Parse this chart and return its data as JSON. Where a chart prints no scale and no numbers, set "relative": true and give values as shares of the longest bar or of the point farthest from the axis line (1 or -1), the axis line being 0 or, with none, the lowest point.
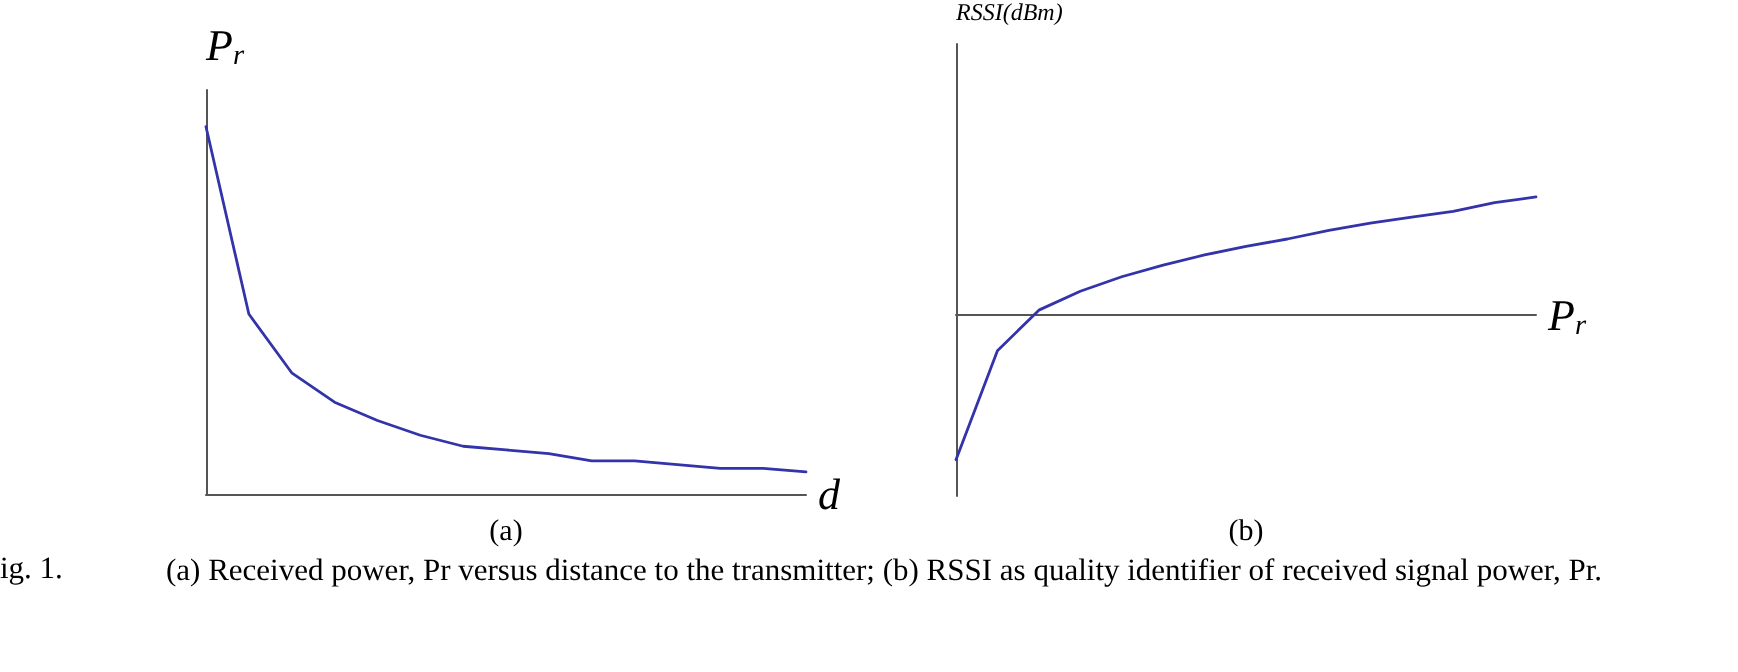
{
  "chart_data": [
    {
      "type": "line",
      "relative": true,
      "ylabel": "P$_{r}$",
      "xlabel": "d",
      "annotations": [
        "(a)",
        "ig. 1.",
        "(a) Received power, Pr versus distance to the transmitter; (b) RSSI as quality identifier of received signal power, Pr."
      ],
      "categories": [
        null,
        null,
        null,
        null,
        null,
        null,
        null,
        null,
        null,
        null,
        null,
        null,
        null,
        null,
        null
      ],
      "series": [
        {
          "color": "#3333aa",
          "values": [
            1,
            0.49,
            0.33,
            0.25,
            0.2,
            0.16,
            0.13,
            0.12,
            0.11,
            0.09,
            0.09,
            0.08,
            0.07,
            0.07,
            0.06
          ]
        }
      ]
    },
    {
      "type": "line",
      "relative": true,
      "ylabel": "RSSI(dBm)",
      "xlabel": "P$_{r}$",
      "annotations": [
        "(b)"
      ],
      "categories": [
        null,
        null,
        null,
        null,
        null,
        null,
        null,
        null,
        null,
        null,
        null,
        null,
        null,
        null,
        null
      ],
      "series": [
        {
          "color": "#3333aa",
          "values": [
            -1,
            -0.25,
            0.03,
            0.16,
            0.26,
            0.34,
            0.41,
            0.47,
            0.52,
            0.58,
            0.63,
            0.67,
            0.71,
            0.77,
            0.81
          ]
        }
      ]
    }
  ]
}
